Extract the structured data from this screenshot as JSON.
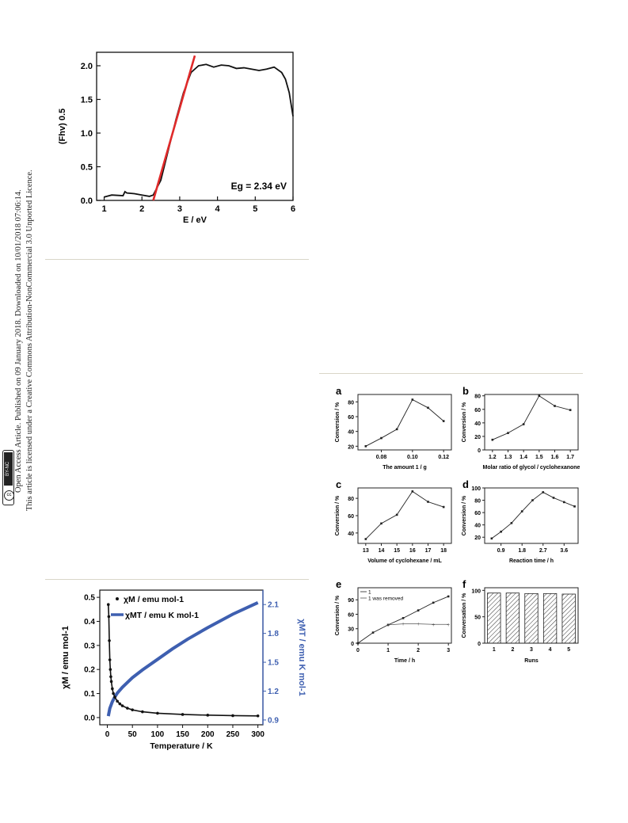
{
  "sidebar": {
    "line1": "Open Access Article. Published on 09 January 2018. Downloaded on 10/01/2018 07:06:14.",
    "line2": "This article is licensed under a Creative Commons Attribution-NonCommercial 3.0 Unported Licence.",
    "badge_cc": "cc",
    "badge_label": "BY-NC"
  },
  "chart_data": [
    {
      "id": "bandgap",
      "type": "line",
      "xlabel": "E / eV",
      "ylabel": "(Fhv) 0.5",
      "xlim": [
        0.8,
        6
      ],
      "ylim": [
        0,
        2.2
      ],
      "xticks": [
        "1",
        "2",
        "3",
        "4",
        "5",
        "6"
      ],
      "yticks": [
        "0.0",
        "0.5",
        "1.0",
        "1.5",
        "2.0"
      ],
      "annotation": "Eg = 2.34 eV",
      "series": [
        {
          "color": "#111111",
          "x": [
            1.0,
            1.2,
            1.5,
            1.55,
            1.6,
            1.8,
            2.0,
            2.2,
            2.3,
            2.5,
            2.7,
            2.9,
            3.1,
            3.3,
            3.5,
            3.7,
            3.9,
            4.1,
            4.3,
            4.5,
            4.7,
            4.9,
            5.1,
            5.3,
            5.5,
            5.7,
            5.8,
            5.9,
            6.0
          ],
          "y": [
            0.05,
            0.08,
            0.07,
            0.13,
            0.11,
            0.1,
            0.08,
            0.06,
            0.08,
            0.3,
            0.75,
            1.2,
            1.6,
            1.9,
            2.0,
            2.02,
            1.98,
            2.01,
            2.0,
            1.96,
            1.97,
            1.95,
            1.93,
            1.95,
            1.98,
            1.9,
            1.8,
            1.6,
            1.25
          ]
        },
        {
          "color": "#e02a2a",
          "x": [
            2.3,
            3.4
          ],
          "y": [
            0.0,
            2.15
          ]
        }
      ]
    },
    {
      "id": "magnetic",
      "type": "scatter",
      "xlabel": "Temperature / K",
      "ylabel": "χM / emu mol-1",
      "ylabel_right": "χMT / emu K mol-1",
      "xlim": [
        -15,
        310
      ],
      "ylim": [
        -0.03,
        0.53
      ],
      "ylim_right": [
        0.85,
        2.25
      ],
      "xticks": [
        "0",
        "50",
        "100",
        "150",
        "200",
        "250",
        "300"
      ],
      "yticks": [
        "0.0",
        "0.1",
        "0.2",
        "0.3",
        "0.4",
        "0.5"
      ],
      "yticks_right": [
        "0.9",
        "1.2",
        "1.5",
        "1.8",
        "2.1"
      ],
      "legend_placement": "top-left",
      "series": [
        {
          "name": "χM / emu mol-1",
          "color": "#111111",
          "x": [
            2,
            3,
            4,
            5,
            6,
            7,
            8,
            10,
            12,
            15,
            20,
            25,
            30,
            40,
            50,
            70,
            100,
            150,
            200,
            250,
            300
          ],
          "y": [
            0.47,
            0.42,
            0.32,
            0.24,
            0.2,
            0.17,
            0.15,
            0.12,
            0.1,
            0.085,
            0.068,
            0.057,
            0.049,
            0.039,
            0.032,
            0.024,
            0.018,
            0.013,
            0.01,
            0.008,
            0.007
          ]
        },
        {
          "name": "χMT / emu K mol-1",
          "color": "#3e5fb0",
          "axis": "right",
          "x": [
            2,
            5,
            10,
            15,
            20,
            30,
            40,
            50,
            70,
            100,
            130,
            160,
            200,
            250,
            300
          ],
          "y": [
            0.94,
            1.02,
            1.09,
            1.14,
            1.18,
            1.24,
            1.29,
            1.34,
            1.42,
            1.53,
            1.64,
            1.74,
            1.86,
            2.0,
            2.12
          ]
        }
      ]
    },
    {
      "id": "a",
      "panel": "a",
      "type": "line",
      "xlabel": "The amount 1 / g",
      "ylabel": "Conversion / %",
      "xlim": [
        0.065,
        0.125
      ],
      "ylim": [
        15,
        90
      ],
      "xticks": [
        "0.08",
        "0.10",
        "0.12"
      ],
      "xtick_values": [
        0.08,
        0.1,
        0.12
      ],
      "yticks": [
        "20",
        "40",
        "60",
        "80"
      ],
      "ytick_values": [
        20,
        40,
        60,
        80
      ],
      "series": [
        {
          "x": [
            0.07,
            0.08,
            0.09,
            0.1,
            0.11,
            0.12
          ],
          "y": [
            20,
            31,
            43,
            83,
            72,
            54
          ]
        }
      ]
    },
    {
      "id": "b",
      "panel": "b",
      "type": "line",
      "xlabel": "Molar ratio of  glycol / cyclohexanone",
      "ylabel": "Conversion / %",
      "xlim": [
        1.15,
        1.75
      ],
      "ylim": [
        0,
        82
      ],
      "xticks": [
        "1.2",
        "1.3",
        "1.4",
        "1.5",
        "1.6",
        "1.7"
      ],
      "xtick_values": [
        1.2,
        1.3,
        1.4,
        1.5,
        1.6,
        1.7
      ],
      "yticks": [
        "0",
        "20",
        "40",
        "60",
        "80"
      ],
      "ytick_values": [
        0,
        20,
        40,
        60,
        80
      ],
      "series": [
        {
          "x": [
            1.2,
            1.3,
            1.4,
            1.5,
            1.6,
            1.7
          ],
          "y": [
            15,
            25,
            38,
            80,
            65,
            59
          ]
        }
      ]
    },
    {
      "id": "c",
      "panel": "c",
      "type": "line",
      "xlabel": "Volume of cyclohexane / mL",
      "ylabel": "Conversion / %",
      "xlim": [
        12.5,
        18.5
      ],
      "ylim": [
        28,
        92
      ],
      "xticks": [
        "13",
        "14",
        "15",
        "16",
        "17",
        "18"
      ],
      "xtick_values": [
        13,
        14,
        15,
        16,
        17,
        18
      ],
      "yticks": [
        "40",
        "60",
        "80"
      ],
      "ytick_values": [
        40,
        60,
        80
      ],
      "series": [
        {
          "x": [
            13,
            14,
            15,
            16,
            17,
            18
          ],
          "y": [
            33,
            51,
            61,
            88,
            76,
            70
          ]
        }
      ]
    },
    {
      "id": "d",
      "panel": "d",
      "type": "line",
      "xlabel": "Reaction time / h",
      "ylabel": "Conversion / %",
      "xlim": [
        0.2,
        4.2
      ],
      "ylim": [
        10,
        100
      ],
      "xticks": [
        "0.9",
        "1.8",
        "2.7",
        "3.6"
      ],
      "xtick_values": [
        0.9,
        1.8,
        2.7,
        3.6
      ],
      "yticks": [
        "20",
        "40",
        "60",
        "80",
        "100"
      ],
      "ytick_values": [
        20,
        40,
        60,
        80,
        100
      ],
      "series": [
        {
          "x": [
            0.5,
            0.9,
            1.35,
            1.8,
            2.25,
            2.7,
            3.15,
            3.6,
            4.05
          ],
          "y": [
            18,
            29,
            43,
            62,
            80,
            93,
            84,
            77,
            70
          ]
        }
      ]
    },
    {
      "id": "e",
      "panel": "e",
      "type": "line",
      "xlabel": "Time / h",
      "ylabel": "Conversion / %",
      "xlim": [
        0,
        3.1
      ],
      "ylim": [
        0,
        115
      ],
      "xticks": [
        "0",
        "1",
        "2",
        "3"
      ],
      "xtick_values": [
        0,
        1,
        2,
        3
      ],
      "yticks": [
        "0",
        "30",
        "60",
        "90"
      ],
      "ytick_values": [
        0,
        30,
        60,
        90
      ],
      "legend_placement": "top-left",
      "series": [
        {
          "name": "1",
          "marker": "square",
          "x": [
            0,
            0.5,
            1.0,
            1.5,
            2.0,
            2.5,
            3.0
          ],
          "y": [
            0,
            22,
            38,
            52,
            68,
            84,
            97
          ]
        },
        {
          "name": "1 was removed",
          "marker": "cross",
          "x": [
            1.0,
            1.5,
            2.0,
            2.5,
            3.0
          ],
          "y": [
            38,
            40,
            40,
            39,
            39
          ]
        }
      ]
    },
    {
      "id": "f",
      "panel": "f",
      "type": "bar",
      "xlabel": "Runs",
      "ylabel": "Conversation / %",
      "categories": [
        "1",
        "2",
        "3",
        "4",
        "5"
      ],
      "values": [
        95,
        95,
        94,
        94,
        93
      ],
      "ylim": [
        0,
        105
      ],
      "yticks": [
        "0",
        "50",
        "100"
      ],
      "ytick_values": [
        0,
        50,
        100
      ]
    }
  ]
}
